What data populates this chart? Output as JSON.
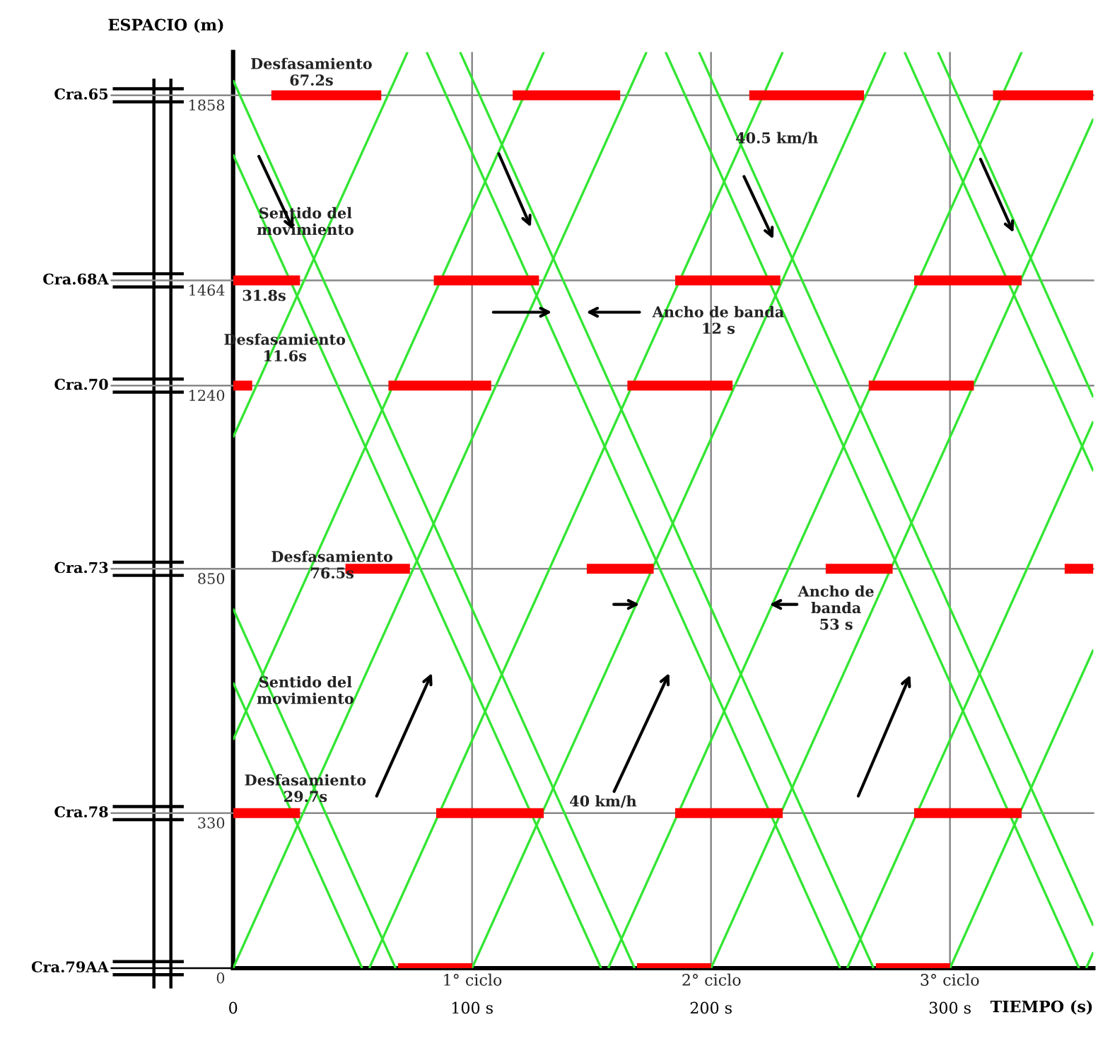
{
  "chart_data": {
    "type": "line",
    "xlabel": "TIEMPO (s)",
    "ylabel": "ESPACIO (m)",
    "xlim": [
      0,
      360
    ],
    "ylim": [
      0,
      1950
    ],
    "xticks": [
      0,
      {
        "value": 100,
        "label": "100 s"
      },
      {
        "value": 200,
        "label": "200 s"
      },
      {
        "value": 300,
        "label": "300 s"
      }
    ],
    "yticks": [
      0,
      330,
      850,
      1240,
      1464,
      1858
    ],
    "grid": "x",
    "ref_lines": [
      {
        "axis": "y",
        "value": 0,
        "label": "Cra.79AA",
        "color": "#000000"
      },
      {
        "axis": "y",
        "value": 330,
        "label": "Cra.78",
        "color": "#888888"
      },
      {
        "axis": "y",
        "value": 850,
        "label": "Cra.73",
        "color": "#888888"
      },
      {
        "axis": "y",
        "value": 1240,
        "label": "Cra.70",
        "color": "#888888"
      },
      {
        "axis": "y",
        "value": 1464,
        "label": "Cra.68A",
        "color": "#888888"
      },
      {
        "axis": "y",
        "value": 1858,
        "label": "Cra.65",
        "color": "#888888"
      }
    ],
    "series": [
      {
        "color": "#ff0000",
        "x": [
          69,
          100
        ],
        "values": [
          0,
          0
        ]
      },
      {
        "color": "#ff0000",
        "x": [
          169,
          200
        ],
        "values": [
          0,
          0
        ]
      },
      {
        "color": "#ff0000",
        "x": [
          269,
          300
        ],
        "values": [
          0,
          0
        ]
      },
      {
        "color": "#ff0000",
        "x": [
          0,
          28
        ],
        "values": [
          330,
          330
        ]
      },
      {
        "color": "#ff0000",
        "x": [
          85,
          130
        ],
        "values": [
          330,
          330
        ]
      },
      {
        "color": "#ff0000",
        "x": [
          185,
          230
        ],
        "values": [
          330,
          330
        ]
      },
      {
        "color": "#ff0000",
        "x": [
          285,
          330
        ],
        "values": [
          330,
          330
        ]
      },
      {
        "color": "#ff0000",
        "x": [
          47,
          74
        ],
        "values": [
          850,
          850
        ]
      },
      {
        "color": "#ff0000",
        "x": [
          148,
          176
        ],
        "values": [
          850,
          850
        ]
      },
      {
        "color": "#ff0000",
        "x": [
          248,
          276
        ],
        "values": [
          850,
          850
        ]
      },
      {
        "color": "#ff0000",
        "x": [
          348,
          360
        ],
        "values": [
          850,
          850
        ]
      },
      {
        "color": "#ff0000",
        "x": [
          0,
          8
        ],
        "values": [
          1240,
          1240
        ]
      },
      {
        "color": "#ff0000",
        "x": [
          65,
          108
        ],
        "values": [
          1240,
          1240
        ]
      },
      {
        "color": "#ff0000",
        "x": [
          165,
          209
        ],
        "values": [
          1240,
          1240
        ]
      },
      {
        "color": "#ff0000",
        "x": [
          266,
          310
        ],
        "values": [
          1240,
          1240
        ]
      },
      {
        "color": "#ff0000",
        "x": [
          0,
          28
        ],
        "values": [
          1464,
          1464
        ]
      },
      {
        "color": "#ff0000",
        "x": [
          84,
          128
        ],
        "values": [
          1464,
          1464
        ]
      },
      {
        "color": "#ff0000",
        "x": [
          185,
          229
        ],
        "values": [
          1464,
          1464
        ]
      },
      {
        "color": "#ff0000",
        "x": [
          285,
          330
        ],
        "values": [
          1464,
          1464
        ]
      },
      {
        "color": "#ff0000",
        "x": [
          16,
          62
        ],
        "values": [
          1858,
          1858
        ]
      },
      {
        "color": "#ff0000",
        "x": [
          117,
          162
        ],
        "values": [
          1858,
          1858
        ]
      },
      {
        "color": "#ff0000",
        "x": [
          216,
          264
        ],
        "values": [
          1858,
          1858
        ]
      },
      {
        "color": "#ff0000",
        "x": [
          318,
          360
        ],
        "values": [
          1858,
          1858
        ]
      },
      {
        "color": "#33e633",
        "x": [
          0,
          73
        ],
        "values": [
          1130,
          1950
        ]
      },
      {
        "color": "#33e633",
        "x": [
          0,
          130
        ],
        "values": [
          486,
          1950
        ]
      },
      {
        "color": "#33e633",
        "x": [
          0,
          173
        ],
        "values": [
          0,
          1950
        ]
      },
      {
        "color": "#33e633",
        "x": [
          57,
          230
        ],
        "values": [
          0,
          1950
        ]
      },
      {
        "color": "#33e633",
        "x": [
          100,
          273
        ],
        "values": [
          0,
          1950
        ]
      },
      {
        "color": "#33e633",
        "x": [
          157,
          330
        ],
        "values": [
          0,
          1950
        ]
      },
      {
        "color": "#33e633",
        "x": [
          200,
          360
        ],
        "values": [
          0,
          1808
        ]
      },
      {
        "color": "#33e633",
        "x": [
          257,
          360
        ],
        "values": [
          0,
          1164
        ]
      },
      {
        "color": "#33e633",
        "x": [
          300,
          360
        ],
        "values": [
          0,
          678
        ]
      },
      {
        "color": "#33e633",
        "x": [
          357,
          360
        ],
        "values": [
          0,
          34
        ]
      },
      {
        "color": "#33e633",
        "x": [
          0,
          54
        ],
        "values": [
          608,
          0
        ]
      },
      {
        "color": "#33e633",
        "x": [
          0,
          68
        ],
        "values": [
          765,
          0
        ]
      },
      {
        "color": "#33e633",
        "x": [
          0,
          154
        ],
        "values": [
          1732,
          0
        ]
      },
      {
        "color": "#33e633",
        "x": [
          0,
          168
        ],
        "values": [
          1890,
          0
        ]
      },
      {
        "color": "#33e633",
        "x": [
          81,
          254
        ],
        "values": [
          1950,
          0
        ]
      },
      {
        "color": "#33e633",
        "x": [
          95,
          268
        ],
        "values": [
          1950,
          0
        ]
      },
      {
        "color": "#33e633",
        "x": [
          181,
          354
        ],
        "values": [
          1950,
          0
        ]
      },
      {
        "color": "#33e633",
        "x": [
          195,
          360
        ],
        "values": [
          1950,
          90
        ]
      },
      {
        "color": "#33e633",
        "x": [
          281,
          360
        ],
        "values": [
          1950,
          1058
        ]
      },
      {
        "color": "#33e633",
        "x": [
          295,
          360
        ],
        "values": [
          1950,
          1215
        ]
      }
    ],
    "annotations": [
      "Desfasamiento\n67.2s",
      "Sentido del\nmovimiento",
      "40.5 km/h",
      "Ancho de banda\n12 s",
      "31.8s",
      "Desfasamiento\n11.6s",
      "Desfasamiento\n76.5s",
      "Ancho de\nbanda\n53 s",
      "Sentido del\nmovimiento",
      "Desfasamiento\n29.7s",
      "40 km/h",
      "1° ciclo",
      "2° ciclo",
      "3° ciclo"
    ]
  }
}
